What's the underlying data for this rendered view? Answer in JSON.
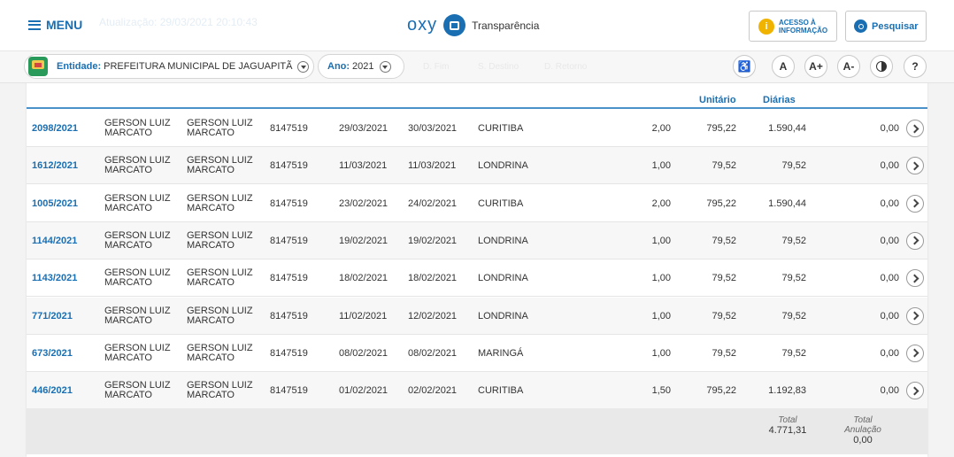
{
  "header": {
    "menu_label": "MENU",
    "faded_text": "Atualização: 29/03/2021 20:10:43",
    "brand_logo": "oxy",
    "brand_name": "Transparência",
    "acesso_line1": "ACESSO À",
    "acesso_line2": "INFORMAÇÃO",
    "search_label": "Pesquisar"
  },
  "filters": {
    "entidade_label": "Entidade:",
    "entidade_value": "PREFEITURA MUNICIPAL DE JAGUAPITÃ",
    "ano_label": "Ano:",
    "ano_value": "2021",
    "faded_1": "D. Fim",
    "faded_2": "S. Destino",
    "faded_3": "D. Retorno",
    "accessibility": {
      "wheelchair": "♿",
      "font_normal": "A",
      "font_increase": "A+",
      "font_decrease": "A-",
      "help": "?"
    }
  },
  "table": {
    "headers": {
      "unitario": "Unitário",
      "diarias": "Diárias"
    },
    "rows": [
      {
        "id": "2098/2021",
        "servidor": [
          "GERSON LUIZ",
          "MARCATO"
        ],
        "favorecido": [
          "GERSON LUIZ",
          "MARCATO"
        ],
        "matricula": "8147519",
        "saida": "29/03/2021",
        "retorno": "30/03/2021",
        "destino": "CURITIBA",
        "qtd": "2,00",
        "unitario": "795,22",
        "diarias": "1.590,44",
        "anulacao": "0,00"
      },
      {
        "id": "1612/2021",
        "servidor": [
          "GERSON LUIZ",
          "MARCATO"
        ],
        "favorecido": [
          "GERSON LUIZ",
          "MARCATO"
        ],
        "matricula": "8147519",
        "saida": "11/03/2021",
        "retorno": "11/03/2021",
        "destino": "LONDRINA",
        "qtd": "1,00",
        "unitario": "79,52",
        "diarias": "79,52",
        "anulacao": "0,00"
      },
      {
        "id": "1005/2021",
        "servidor": [
          "GERSON LUIZ",
          "MARCATO"
        ],
        "favorecido": [
          "GERSON LUIZ",
          "MARCATO"
        ],
        "matricula": "8147519",
        "saida": "23/02/2021",
        "retorno": "24/02/2021",
        "destino": "CURITIBA",
        "qtd": "2,00",
        "unitario": "795,22",
        "diarias": "1.590,44",
        "anulacao": "0,00"
      },
      {
        "id": "1144/2021",
        "servidor": [
          "GERSON LUIZ",
          "MARCATO"
        ],
        "favorecido": [
          "GERSON LUIZ",
          "MARCATO"
        ],
        "matricula": "8147519",
        "saida": "19/02/2021",
        "retorno": "19/02/2021",
        "destino": "LONDRINA",
        "qtd": "1,00",
        "unitario": "79,52",
        "diarias": "79,52",
        "anulacao": "0,00"
      },
      {
        "id": "1143/2021",
        "servidor": [
          "GERSON LUIZ",
          "MARCATO"
        ],
        "favorecido": [
          "GERSON LUIZ",
          "MARCATO"
        ],
        "matricula": "8147519",
        "saida": "18/02/2021",
        "retorno": "18/02/2021",
        "destino": "LONDRINA",
        "qtd": "1,00",
        "unitario": "79,52",
        "diarias": "79,52",
        "anulacao": "0,00"
      },
      {
        "id": "771/2021",
        "servidor": [
          "GERSON LUIZ",
          "MARCATO"
        ],
        "favorecido": [
          "GERSON LUIZ",
          "MARCATO"
        ],
        "matricula": "8147519",
        "saida": "11/02/2021",
        "retorno": "12/02/2021",
        "destino": "LONDRINA",
        "qtd": "1,00",
        "unitario": "79,52",
        "diarias": "79,52",
        "anulacao": "0,00"
      },
      {
        "id": "673/2021",
        "servidor": [
          "GERSON LUIZ",
          "MARCATO"
        ],
        "favorecido": [
          "GERSON LUIZ",
          "MARCATO"
        ],
        "matricula": "8147519",
        "saida": "08/02/2021",
        "retorno": "08/02/2021",
        "destino": "MARINGÁ",
        "qtd": "1,00",
        "unitario": "79,52",
        "diarias": "79,52",
        "anulacao": "0,00"
      },
      {
        "id": "446/2021",
        "servidor": [
          "GERSON LUIZ",
          "MARCATO"
        ],
        "favorecido": [
          "GERSON LUIZ",
          "MARCATO"
        ],
        "matricula": "8147519",
        "saida": "01/02/2021",
        "retorno": "02/02/2021",
        "destino": "CURITIBA",
        "qtd": "1,50",
        "unitario": "795,22",
        "diarias": "1.192,83",
        "anulacao": "0,00"
      }
    ],
    "totals": {
      "total_label": "Total",
      "total_value": "4.771,31",
      "anulacao_label_1": "Total",
      "anulacao_label_2": "Anulação",
      "anulacao_value": "0,00"
    }
  },
  "colors": {
    "accent": "#1a6fb3",
    "header_rule": "#4a90c9",
    "info_badge": "#f0b400"
  }
}
